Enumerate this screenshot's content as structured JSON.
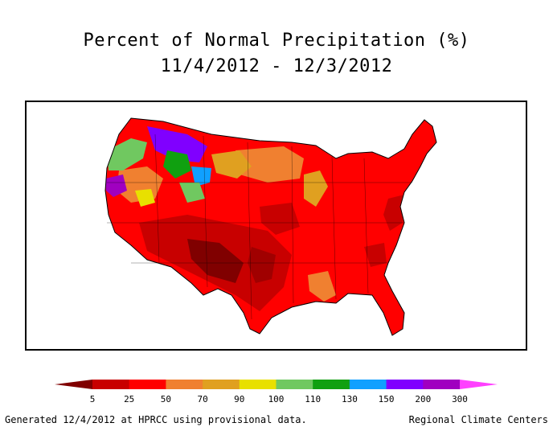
{
  "title": {
    "line1": "Percent of Normal Precipitation (%)",
    "line2": "11/4/2012 - 12/3/2012"
  },
  "legend": {
    "colors": [
      "#800000",
      "#c80000",
      "#ff0000",
      "#f08030",
      "#e0a020",
      "#e8e000",
      "#70c860",
      "#10a010",
      "#10a0ff",
      "#8000ff",
      "#a000c0",
      "#ff40ff"
    ],
    "labels": [
      "5",
      "25",
      "50",
      "70",
      "90",
      "100",
      "110",
      "130",
      "150",
      "200",
      "300"
    ]
  },
  "footer": {
    "left": "Generated 12/4/2012 at HPRCC using provisional data.",
    "right": "Regional Climate Centers"
  }
}
